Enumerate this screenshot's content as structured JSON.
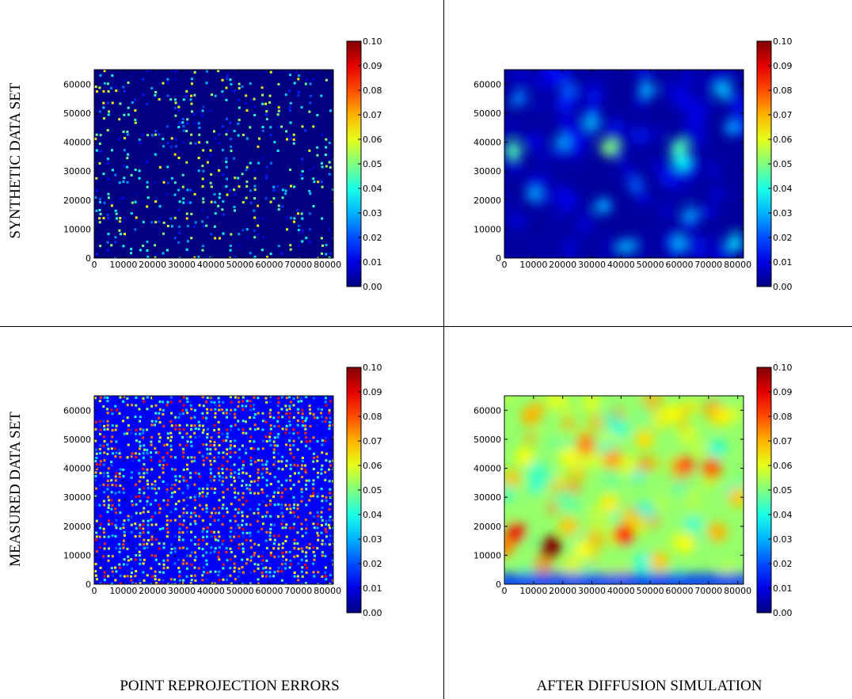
{
  "row_labels": [
    "SYNTHETIC DATA SET",
    "MEASURED DATA SET"
  ],
  "col_labels": [
    "POINT REPROJECTION ERRORS",
    "AFTER DIFFUSION SIMULATION"
  ],
  "chart_data": [
    {
      "type": "heatmap",
      "row": "SYNTHETIC DATA SET",
      "column": "POINT REPROJECTION ERRORS",
      "xlim": [
        0,
        82000
      ],
      "ylim": [
        0,
        65000
      ],
      "x_ticks": [
        0,
        10000,
        20000,
        30000,
        40000,
        50000,
        60000,
        70000,
        80000
      ],
      "y_ticks": [
        0,
        10000,
        20000,
        30000,
        40000,
        50000,
        60000
      ],
      "colorbar": {
        "range": [
          0.0,
          0.1
        ],
        "ticks": [
          "0.00",
          "0.01",
          "0.02",
          "0.03",
          "0.04",
          "0.05",
          "0.06",
          "0.07",
          "0.08",
          "0.09",
          "0.10"
        ],
        "colormap": "jet"
      },
      "pattern": "scattered point errors, sparse",
      "background_level": 0.0,
      "point_density": 0.22,
      "point_intensity": 0.45
    },
    {
      "type": "heatmap",
      "row": "SYNTHETIC DATA SET",
      "column": "AFTER DIFFUSION SIMULATION",
      "xlim": [
        0,
        82000
      ],
      "ylim": [
        0,
        65000
      ],
      "x_ticks": [
        0,
        10000,
        20000,
        30000,
        40000,
        50000,
        60000,
        70000,
        80000
      ],
      "y_ticks": [
        0,
        10000,
        20000,
        30000,
        40000,
        50000,
        60000
      ],
      "colorbar": {
        "range": [
          0.0,
          0.1
        ],
        "ticks": [
          "0.00",
          "0.01",
          "0.02",
          "0.03",
          "0.04",
          "0.05",
          "0.06",
          "0.07",
          "0.08",
          "0.09",
          "0.10"
        ],
        "colormap": "jet"
      },
      "pattern": "smooth diffused field, low values",
      "background_level": 0.003,
      "hotspots": [
        {
          "x": 3000,
          "y": 37000,
          "v": 0.045
        },
        {
          "x": 36000,
          "y": 38000,
          "v": 0.05
        },
        {
          "x": 60000,
          "y": 38000,
          "v": 0.045
        },
        {
          "x": 61000,
          "y": 33000,
          "v": 0.038
        },
        {
          "x": 30000,
          "y": 47000,
          "v": 0.03
        },
        {
          "x": 20000,
          "y": 40000,
          "v": 0.028
        },
        {
          "x": 75000,
          "y": 58000,
          "v": 0.032
        },
        {
          "x": 49000,
          "y": 58000,
          "v": 0.03
        },
        {
          "x": 79000,
          "y": 5000,
          "v": 0.035
        },
        {
          "x": 42000,
          "y": 4000,
          "v": 0.03
        },
        {
          "x": 60000,
          "y": 5000,
          "v": 0.03
        },
        {
          "x": 34000,
          "y": 18000,
          "v": 0.03
        },
        {
          "x": 10000,
          "y": 22000,
          "v": 0.028
        },
        {
          "x": 64000,
          "y": 15000,
          "v": 0.028
        },
        {
          "x": 78000,
          "y": 45000,
          "v": 0.028
        },
        {
          "x": 5000,
          "y": 55000,
          "v": 0.025
        },
        {
          "x": 45000,
          "y": 25000,
          "v": 0.022
        },
        {
          "x": 22000,
          "y": 58000,
          "v": 0.022
        }
      ]
    },
    {
      "type": "heatmap",
      "row": "MEASURED DATA SET",
      "column": "POINT REPROJECTION ERRORS",
      "xlim": [
        0,
        82000
      ],
      "ylim": [
        0,
        65000
      ],
      "x_ticks": [
        0,
        10000,
        20000,
        30000,
        40000,
        50000,
        60000,
        70000,
        80000
      ],
      "y_ticks": [
        0,
        10000,
        20000,
        30000,
        40000,
        50000,
        60000
      ],
      "colorbar": {
        "range": [
          0.0,
          0.1
        ],
        "ticks": [
          "0.00",
          "0.01",
          "0.02",
          "0.03",
          "0.04",
          "0.05",
          "0.06",
          "0.07",
          "0.08",
          "0.09",
          "0.10"
        ],
        "colormap": "jet"
      },
      "pattern": "dense scattered point errors",
      "background_level": 0.012,
      "point_density": 0.55,
      "point_intensity": 0.8
    },
    {
      "type": "heatmap",
      "row": "MEASURED DATA SET",
      "column": "AFTER DIFFUSION SIMULATION",
      "xlim": [
        0,
        82000
      ],
      "ylim": [
        0,
        65000
      ],
      "x_ticks": [
        0,
        10000,
        20000,
        30000,
        40000,
        50000,
        60000,
        70000,
        80000
      ],
      "y_ticks": [
        0,
        10000,
        20000,
        30000,
        40000,
        50000,
        60000
      ],
      "colorbar": {
        "range": [
          0.0,
          0.1
        ],
        "ticks": [
          "0.00",
          "0.01",
          "0.02",
          "0.03",
          "0.04",
          "0.05",
          "0.06",
          "0.07",
          "0.08",
          "0.09",
          "0.10"
        ],
        "colormap": "jet"
      },
      "pattern": "smooth diffused field, moderate values, low near bottom edge",
      "background_level": 0.052,
      "hotspots": [
        {
          "x": 16000,
          "y": 13000,
          "v": 0.1
        },
        {
          "x": 4000,
          "y": 18000,
          "v": 0.09
        },
        {
          "x": 41000,
          "y": 17000,
          "v": 0.085
        },
        {
          "x": 62000,
          "y": 41000,
          "v": 0.08
        },
        {
          "x": 71000,
          "y": 40000,
          "v": 0.078
        },
        {
          "x": 28000,
          "y": 48000,
          "v": 0.075
        },
        {
          "x": 37000,
          "y": 43000,
          "v": 0.072
        },
        {
          "x": 0,
          "y": 13000,
          "v": 0.075
        },
        {
          "x": 9000,
          "y": 58000,
          "v": 0.07
        },
        {
          "x": 73000,
          "y": 18000,
          "v": 0.07
        },
        {
          "x": 53000,
          "y": 8000,
          "v": 0.068
        },
        {
          "x": 22000,
          "y": 20000,
          "v": 0.068
        },
        {
          "x": 80000,
          "y": 30000,
          "v": 0.068
        },
        {
          "x": 48000,
          "y": 50000,
          "v": 0.066
        },
        {
          "x": 27000,
          "y": 12000,
          "v": 0.062
        },
        {
          "x": 62000,
          "y": 14000,
          "v": 0.062
        },
        {
          "x": 75000,
          "y": 58000,
          "v": 0.064
        },
        {
          "x": 22000,
          "y": 44000,
          "v": 0.062
        },
        {
          "x": 7000,
          "y": 44000,
          "v": 0.062
        },
        {
          "x": 58000,
          "y": 59000,
          "v": 0.062
        },
        {
          "x": 36000,
          "y": 28000,
          "v": 0.064
        }
      ]
    }
  ]
}
